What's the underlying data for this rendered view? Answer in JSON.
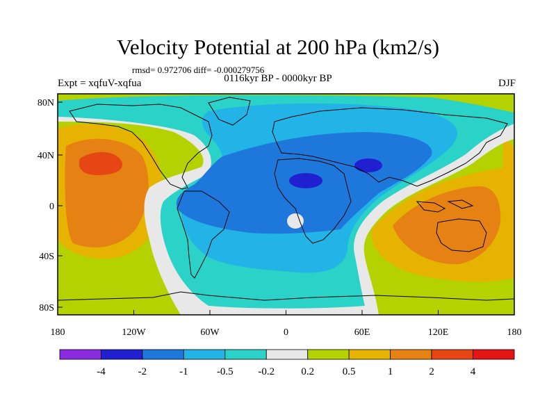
{
  "title": "Velocity Potential at 200 hPa (km2/s)",
  "stats": "rmsd= 0.972706 diff= -0.000279756",
  "expt": "Expt = xqfuV-xqfua",
  "period": "0116kyr BP - 0000kyr BP",
  "season": "DJF",
  "lat_labels": [
    "80N",
    "40N",
    "0",
    "40S",
    "80S"
  ],
  "lon_labels": [
    "180",
    "120W",
    "60W",
    "0",
    "60E",
    "120E",
    "180"
  ],
  "colorbar": {
    "colors": [
      "#8a2be2",
      "#2020d0",
      "#1e78dc",
      "#22b4e6",
      "#2ad2c8",
      "#e8e8e8",
      "#b4d200",
      "#e6b400",
      "#e68214",
      "#e64614",
      "#e61414"
    ],
    "labels": [
      "-4",
      "-2",
      "-1",
      "-0.5",
      "-0.2",
      "0.2",
      "0.5",
      "1",
      "2",
      "4"
    ]
  },
  "icons": {
    "coastline": "coastline-outline"
  }
}
